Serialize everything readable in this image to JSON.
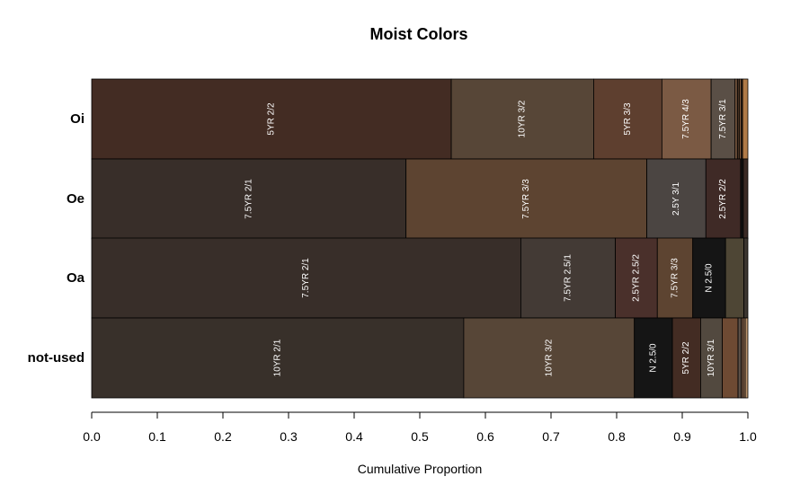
{
  "chart_data": {
    "type": "bar",
    "orientation": "horizontal",
    "stacked": true,
    "title": "Moist Colors",
    "xlabel": "Cumulative Proportion",
    "ylabel": "",
    "xlim": [
      0,
      1
    ],
    "xticks": [
      "0.0",
      "0.1",
      "0.2",
      "0.3",
      "0.4",
      "0.5",
      "0.6",
      "0.7",
      "0.8",
      "0.9",
      "1.0"
    ],
    "xtick_values": [
      0.0,
      0.1,
      0.2,
      0.3,
      0.4,
      0.5,
      0.6,
      0.7,
      0.8,
      0.9,
      1.0
    ],
    "grid": false,
    "legend": "none",
    "categories": [
      "Oi",
      "Oe",
      "Oa",
      "not-used"
    ],
    "bars": [
      {
        "category": "Oi",
        "segments": [
          {
            "label": "5YR 2/2",
            "value": 0.548,
            "color": "#432C23"
          },
          {
            "label": "10YR 3/2",
            "value": 0.217,
            "color": "#574637"
          },
          {
            "label": "5YR 3/3",
            "value": 0.104,
            "color": "#5E3F2F"
          },
          {
            "label": "7.5YR 4/3",
            "value": 0.075,
            "color": "#7B5A44"
          },
          {
            "label": "7.5YR 3/1",
            "value": 0.036,
            "color": "#5A4F46"
          },
          {
            "label": "",
            "value": 0.004,
            "color": "#6E513C"
          },
          {
            "label": "",
            "value": 0.003,
            "color": "#4A3324"
          },
          {
            "label": "",
            "value": 0.003,
            "color": "#8A6142"
          },
          {
            "label": "",
            "value": 0.002,
            "color": "#3C2A20"
          },
          {
            "label": "",
            "value": 0.008,
            "color": "#B07A47"
          }
        ]
      },
      {
        "category": "Oe",
        "segments": [
          {
            "label": "7.5YR 2/1",
            "value": 0.479,
            "color": "#382E29"
          },
          {
            "label": "7.5YR 3/3",
            "value": 0.367,
            "color": "#5D4431"
          },
          {
            "label": "2.5Y 3/1",
            "value": 0.09,
            "color": "#4B4542"
          },
          {
            "label": "2.5YR 2/2",
            "value": 0.053,
            "color": "#3F2A26"
          },
          {
            "label": "",
            "value": 0.004,
            "color": "#111111"
          },
          {
            "label": "",
            "value": 0.007,
            "color": "#3A2A25"
          }
        ]
      },
      {
        "category": "Oa",
        "segments": [
          {
            "label": "7.5YR 2/1",
            "value": 0.654,
            "color": "#382E29"
          },
          {
            "label": "7.5YR 2.5/1",
            "value": 0.144,
            "color": "#433A35"
          },
          {
            "label": "2.5YR 2.5/2",
            "value": 0.064,
            "color": "#4A302B"
          },
          {
            "label": "7.5YR 3/3",
            "value": 0.054,
            "color": "#5D4431"
          },
          {
            "label": "N 2.5/0",
            "value": 0.05,
            "color": "#151515"
          },
          {
            "label": "",
            "value": 0.028,
            "color": "#4E4635"
          },
          {
            "label": "",
            "value": 0.006,
            "color": "#3C3630"
          }
        ]
      },
      {
        "category": "not-used",
        "segments": [
          {
            "label": "10YR 2/1",
            "value": 0.567,
            "color": "#38302A"
          },
          {
            "label": "10YR 3/2",
            "value": 0.26,
            "color": "#574637"
          },
          {
            "label": "N 2.5/0",
            "value": 0.058,
            "color": "#151515"
          },
          {
            "label": "5YR 2/2",
            "value": 0.043,
            "color": "#432C23"
          },
          {
            "label": "10YR 3/1",
            "value": 0.033,
            "color": "#52493F"
          },
          {
            "label": "",
            "value": 0.024,
            "color": "#6E4A33"
          },
          {
            "label": "",
            "value": 0.005,
            "color": "#5A4F46"
          },
          {
            "label": "",
            "value": 0.003,
            "color": "#7B5A44"
          },
          {
            "label": "",
            "value": 0.003,
            "color": "#9A7255"
          },
          {
            "label": "",
            "value": 0.004,
            "color": "#B9926C"
          }
        ]
      }
    ]
  }
}
